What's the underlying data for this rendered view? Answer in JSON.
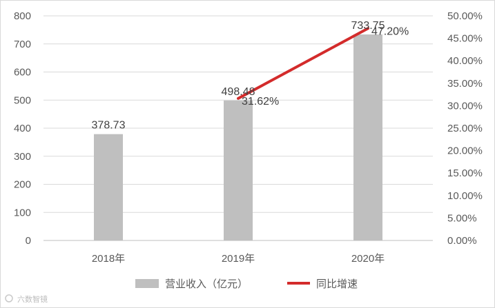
{
  "chart_data": {
    "type": "bar",
    "categories": [
      "2018年",
      "2019年",
      "2020年"
    ],
    "series": [
      {
        "name": "营业收入（亿元）",
        "kind": "bar",
        "axis": "left",
        "values": [
          378.73,
          498.48,
          733.75
        ],
        "labels": [
          "378.73",
          "498.48",
          "733.75"
        ]
      },
      {
        "name": "同比增速",
        "kind": "line",
        "axis": "right",
        "values": [
          null,
          31.62,
          47.2
        ],
        "labels": [
          "",
          "31.62%",
          "47.20%"
        ]
      }
    ],
    "ylim": [
      0,
      800
    ],
    "y_ticks": [
      "0",
      "100",
      "200",
      "300",
      "400",
      "500",
      "600",
      "700",
      "800"
    ],
    "y2lim": [
      0,
      50
    ],
    "y2_ticks": [
      "0.00%",
      "5.00%",
      "10.00%",
      "15.00%",
      "20.00%",
      "25.00%",
      "30.00%",
      "35.00%",
      "40.00%",
      "45.00%",
      "50.00%"
    ],
    "title": "",
    "xlabel": "",
    "ylabel": "",
    "grid": true,
    "legend": "bottom",
    "colors": {
      "bar": "#bfbfbf",
      "line": "#d32b2b",
      "grid": "#d9d9d9",
      "axis": "#bfbfbf"
    }
  },
  "watermark": {
    "text": "六数智镜"
  }
}
